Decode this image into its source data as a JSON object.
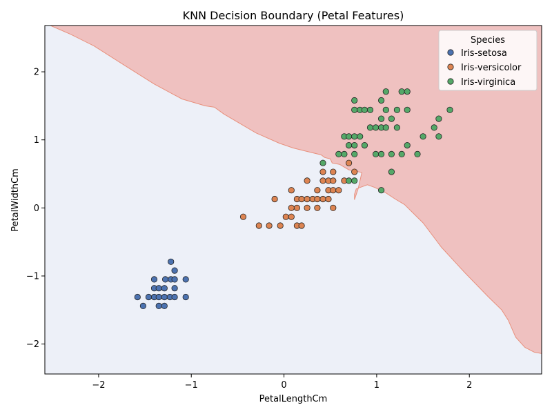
{
  "chart_data": {
    "type": "scatter",
    "title": "KNN Decision Boundary (Petal Features)",
    "xlabel": "PetalLengthCm",
    "ylabel": "PetalWidthCm",
    "xlim": [
      -2.58,
      2.78
    ],
    "ylim": [
      -2.44,
      2.68
    ],
    "x_ticks": [
      -2,
      -1,
      0,
      1,
      2
    ],
    "y_ticks": [
      -2,
      -1,
      0,
      1,
      2
    ],
    "x_tick_labels": [
      "−2",
      "−1",
      "0",
      "1",
      "2"
    ],
    "y_tick_labels": [
      "−2",
      "−1",
      "0",
      "1",
      "2"
    ],
    "grid": false,
    "legend": {
      "title": "Species",
      "placement": "top-right"
    },
    "decision_regions": [
      {
        "class": "Iris-setosa",
        "color": "#c8d0f1",
        "edge": "#b8c4f4",
        "polygon": [
          [
            -2.58,
            1.74
          ],
          [
            -2.3,
            1.45
          ],
          [
            -2.0,
            1.1
          ],
          [
            -1.7,
            0.75
          ],
          [
            -1.4,
            0.42
          ],
          [
            -1.1,
            0.07
          ],
          [
            -0.8,
            -0.28
          ],
          [
            -0.5,
            -0.62
          ],
          [
            -0.2,
            -0.98
          ],
          [
            0.05,
            -1.3
          ],
          [
            0.3,
            -1.65
          ],
          [
            0.55,
            -2.0
          ],
          [
            0.85,
            -2.44
          ],
          [
            -2.58,
            -2.44
          ]
        ]
      },
      {
        "class": "Iris-versicolor",
        "color": "#edf0f8",
        "edge": "#edf0f8",
        "polygon": [
          [
            -2.58,
            2.68
          ],
          [
            2.78,
            2.68
          ],
          [
            2.78,
            -2.44
          ],
          [
            -2.58,
            -2.44
          ]
        ]
      },
      {
        "class": "Iris-virginica",
        "color": "#efc1c0",
        "edge": "#e8907c",
        "polygon": [
          [
            -2.52,
            2.68
          ],
          [
            2.78,
            2.68
          ],
          [
            2.78,
            -2.14
          ],
          [
            2.7,
            -2.12
          ],
          [
            2.6,
            -2.05
          ],
          [
            2.5,
            -1.9
          ],
          [
            2.42,
            -1.65
          ],
          [
            2.35,
            -1.5
          ],
          [
            2.2,
            -1.3
          ],
          [
            1.95,
            -0.95
          ],
          [
            1.7,
            -0.58
          ],
          [
            1.5,
            -0.22
          ],
          [
            1.3,
            0.05
          ],
          [
            1.2,
            0.13
          ],
          [
            1.1,
            0.22
          ],
          [
            0.98,
            0.3
          ],
          [
            0.9,
            0.34
          ],
          [
            0.78,
            0.28
          ],
          [
            0.76,
            0.2
          ],
          [
            0.76,
            0.12
          ],
          [
            0.8,
            0.28
          ],
          [
            0.84,
            0.52
          ],
          [
            0.7,
            0.56
          ],
          [
            0.6,
            0.64
          ],
          [
            0.52,
            0.66
          ],
          [
            0.5,
            0.72
          ],
          [
            0.44,
            0.74
          ],
          [
            0.4,
            0.78
          ],
          [
            0.25,
            0.83
          ],
          [
            0.1,
            0.88
          ],
          [
            -0.05,
            0.95
          ],
          [
            -0.3,
            1.1
          ],
          [
            -0.55,
            1.3
          ],
          [
            -0.65,
            1.38
          ],
          [
            -0.75,
            1.48
          ],
          [
            -0.85,
            1.5
          ],
          [
            -1.1,
            1.6
          ],
          [
            -1.4,
            1.82
          ],
          [
            -1.75,
            2.12
          ],
          [
            -2.05,
            2.38
          ],
          [
            -2.3,
            2.55
          ]
        ]
      }
    ],
    "series": [
      {
        "name": "Iris-setosa",
        "color": "#4c72b0",
        "points": [
          [
            -1.22,
            -0.79
          ],
          [
            -1.18,
            -0.92
          ],
          [
            -1.4,
            -1.05
          ],
          [
            -1.28,
            -1.05
          ],
          [
            -1.22,
            -1.05
          ],
          [
            -1.18,
            -1.05
          ],
          [
            -1.06,
            -1.05
          ],
          [
            -1.4,
            -1.18
          ],
          [
            -1.35,
            -1.18
          ],
          [
            -1.29,
            -1.18
          ],
          [
            -1.18,
            -1.18
          ],
          [
            -1.58,
            -1.31
          ],
          [
            -1.46,
            -1.31
          ],
          [
            -1.4,
            -1.31
          ],
          [
            -1.35,
            -1.31
          ],
          [
            -1.29,
            -1.31
          ],
          [
            -1.23,
            -1.31
          ],
          [
            -1.18,
            -1.31
          ],
          [
            -1.06,
            -1.31
          ],
          [
            -1.52,
            -1.44
          ],
          [
            -1.35,
            -1.44
          ],
          [
            -1.29,
            -1.44
          ]
        ]
      },
      {
        "name": "Iris-versicolor",
        "color": "#dd8452",
        "points": [
          [
            -0.44,
            -0.13
          ],
          [
            -0.27,
            -0.26
          ],
          [
            -0.16,
            -0.26
          ],
          [
            -0.04,
            -0.26
          ],
          [
            0.14,
            -0.26
          ],
          [
            0.19,
            -0.26
          ],
          [
            0.02,
            -0.13
          ],
          [
            0.08,
            -0.13
          ],
          [
            0.08,
            0.0
          ],
          [
            0.14,
            0.0
          ],
          [
            0.25,
            0.0
          ],
          [
            0.36,
            0.0
          ],
          [
            0.53,
            0.0
          ],
          [
            -0.1,
            0.13
          ],
          [
            0.14,
            0.13
          ],
          [
            0.19,
            0.13
          ],
          [
            0.25,
            0.13
          ],
          [
            0.31,
            0.13
          ],
          [
            0.36,
            0.13
          ],
          [
            0.42,
            0.13
          ],
          [
            0.48,
            0.13
          ],
          [
            0.08,
            0.26
          ],
          [
            0.36,
            0.26
          ],
          [
            0.48,
            0.26
          ],
          [
            0.53,
            0.26
          ],
          [
            0.59,
            0.26
          ],
          [
            0.25,
            0.4
          ],
          [
            0.42,
            0.4
          ],
          [
            0.48,
            0.4
          ],
          [
            0.53,
            0.4
          ],
          [
            0.65,
            0.4
          ],
          [
            0.42,
            0.53
          ],
          [
            0.53,
            0.53
          ],
          [
            0.76,
            0.53
          ],
          [
            0.7,
            0.66
          ]
        ]
      },
      {
        "name": "Iris-virginica",
        "color": "#55a868",
        "points": [
          [
            1.05,
            0.26
          ],
          [
            0.7,
            0.4
          ],
          [
            0.76,
            0.4
          ],
          [
            1.16,
            0.53
          ],
          [
            0.42,
            0.66
          ],
          [
            0.59,
            0.79
          ],
          [
            0.65,
            0.79
          ],
          [
            0.76,
            0.79
          ],
          [
            0.99,
            0.79
          ],
          [
            1.05,
            0.79
          ],
          [
            1.16,
            0.79
          ],
          [
            1.27,
            0.79
          ],
          [
            1.44,
            0.79
          ],
          [
            0.7,
            0.92
          ],
          [
            0.76,
            0.92
          ],
          [
            0.87,
            0.92
          ],
          [
            1.33,
            0.92
          ],
          [
            0.65,
            1.05
          ],
          [
            0.7,
            1.05
          ],
          [
            0.76,
            1.05
          ],
          [
            0.82,
            1.05
          ],
          [
            1.5,
            1.05
          ],
          [
            1.67,
            1.05
          ],
          [
            0.93,
            1.18
          ],
          [
            0.99,
            1.18
          ],
          [
            1.05,
            1.18
          ],
          [
            1.1,
            1.18
          ],
          [
            1.22,
            1.18
          ],
          [
            1.62,
            1.18
          ],
          [
            1.05,
            1.31
          ],
          [
            1.16,
            1.31
          ],
          [
            1.67,
            1.31
          ],
          [
            0.76,
            1.44
          ],
          [
            0.82,
            1.44
          ],
          [
            0.87,
            1.44
          ],
          [
            0.93,
            1.44
          ],
          [
            1.1,
            1.44
          ],
          [
            1.22,
            1.44
          ],
          [
            1.33,
            1.44
          ],
          [
            1.79,
            1.44
          ],
          [
            0.76,
            1.58
          ],
          [
            1.05,
            1.58
          ],
          [
            1.1,
            1.71
          ],
          [
            1.27,
            1.71
          ],
          [
            1.33,
            1.71
          ]
        ]
      }
    ]
  }
}
